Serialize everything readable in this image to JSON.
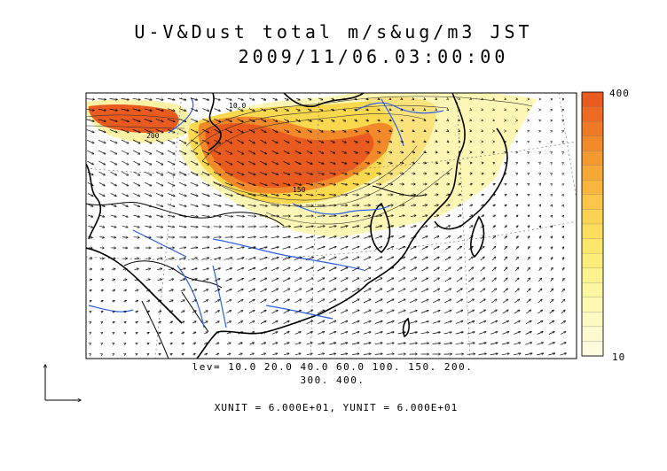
{
  "title": {
    "line1": "U-V&Dust total m/s&ug/m3 JST",
    "line2": "2009/11/06.03:00:00"
  },
  "contour_levels": {
    "line1": "lev= 10.0 20.0 40.0 60.0 100. 150. 200.",
    "line2": "300. 400."
  },
  "units": "XUNIT = 6.000E+01, YUNIT = 6.000E+01",
  "colorbar": {
    "max_label": "400",
    "min_label": "10",
    "colors": [
      "#e85a1e",
      "#ec6a22",
      "#ef7a26",
      "#f28a2a",
      "#f49a30",
      "#f6a836",
      "#f8b63e",
      "#fac548",
      "#fbd252",
      "#fcdd5e",
      "#fde66c",
      "#fdee7c",
      "#fdf38e",
      "#fdf6a0",
      "#fdf8b2",
      "#fdf9c2",
      "#fefad0",
      "#fefbdc"
    ]
  },
  "map_labels": {
    "contour_10": "10.0",
    "contour_150": "150",
    "contour_200": "200"
  }
}
